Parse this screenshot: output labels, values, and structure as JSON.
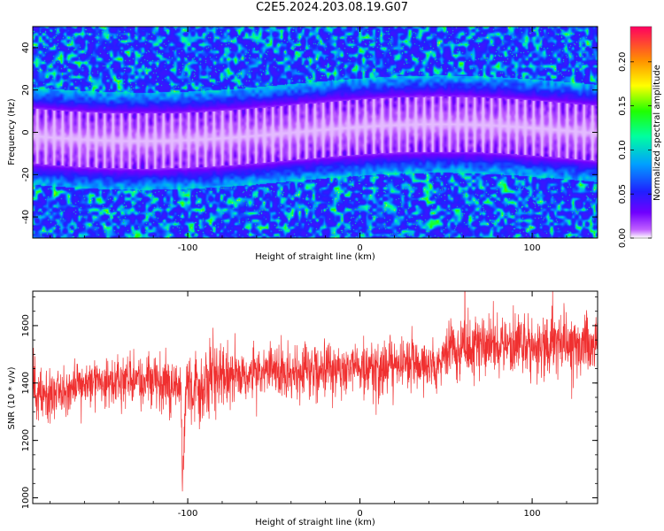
{
  "title": "C2E5.2024.203.08.19.G07",
  "colors": {
    "snr_line": "#f03030",
    "colormap": [
      "#ffffff",
      "#b040ff",
      "#6a00ff",
      "#2030ff",
      "#00c0ff",
      "#00ff60",
      "#ffff00",
      "#ff8000",
      "#ff0060"
    ]
  },
  "chart_data": [
    {
      "type": "heatmap",
      "title": "",
      "xlabel": "Height of straight line (km)",
      "ylabel": "Frequency (Hz)",
      "xlim": [
        -190,
        138
      ],
      "ylim": [
        -50,
        50
      ],
      "x_ticks": [
        -100,
        0,
        100
      ],
      "y_ticks": [
        -40,
        -20,
        0,
        20,
        40
      ],
      "colorbar": {
        "label": "Normalized spectral amplitude",
        "range": [
          0.0,
          0.24
        ],
        "ticks": [
          "0.00",
          "0.05",
          "0.10",
          "0.15",
          "0.20"
        ],
        "tick_values": [
          0.0,
          0.05,
          0.1,
          0.15,
          0.2
        ]
      },
      "x_labels": [
        "-100",
        "0",
        "100"
      ],
      "y_labels": [
        "-40",
        "-20",
        "0",
        "20",
        "40"
      ],
      "features": {
        "center_band_freq_hz": 0,
        "band_halfwidth_hz": 13,
        "noise_floor_level": 0.04
      }
    },
    {
      "type": "line",
      "title": "",
      "xlabel": "Height of straight line (km)",
      "ylabel": "SNR (10 * v/v)",
      "xlim": [
        -190,
        138
      ],
      "ylim": [
        980,
        1720
      ],
      "x_ticks": [
        -100,
        0,
        100
      ],
      "y_ticks": [
        1000,
        1200,
        1400,
        1600
      ],
      "x_labels": [
        "-100",
        "0",
        "100"
      ],
      "y_labels": [
        "1000",
        "1200",
        "1400",
        "1600"
      ],
      "series": [
        {
          "x": [
            -190,
            -170,
            -150,
            -130,
            -110,
            -104,
            -103,
            -101,
            -95,
            -88,
            -87,
            -60,
            -30,
            0,
            30,
            48,
            52,
            80,
            110,
            138
          ],
          "mean": [
            1360,
            1380,
            1400,
            1410,
            1400,
            1400,
            1050,
            1400,
            1370,
            1360,
            1440,
            1440,
            1445,
            1450,
            1470,
            1470,
            1520,
            1530,
            1535,
            1540
          ],
          "spread": [
            80,
            80,
            85,
            85,
            90,
            90,
            90,
            90,
            110,
            120,
            90,
            85,
            85,
            85,
            85,
            85,
            95,
            100,
            100,
            100
          ]
        }
      ]
    }
  ]
}
